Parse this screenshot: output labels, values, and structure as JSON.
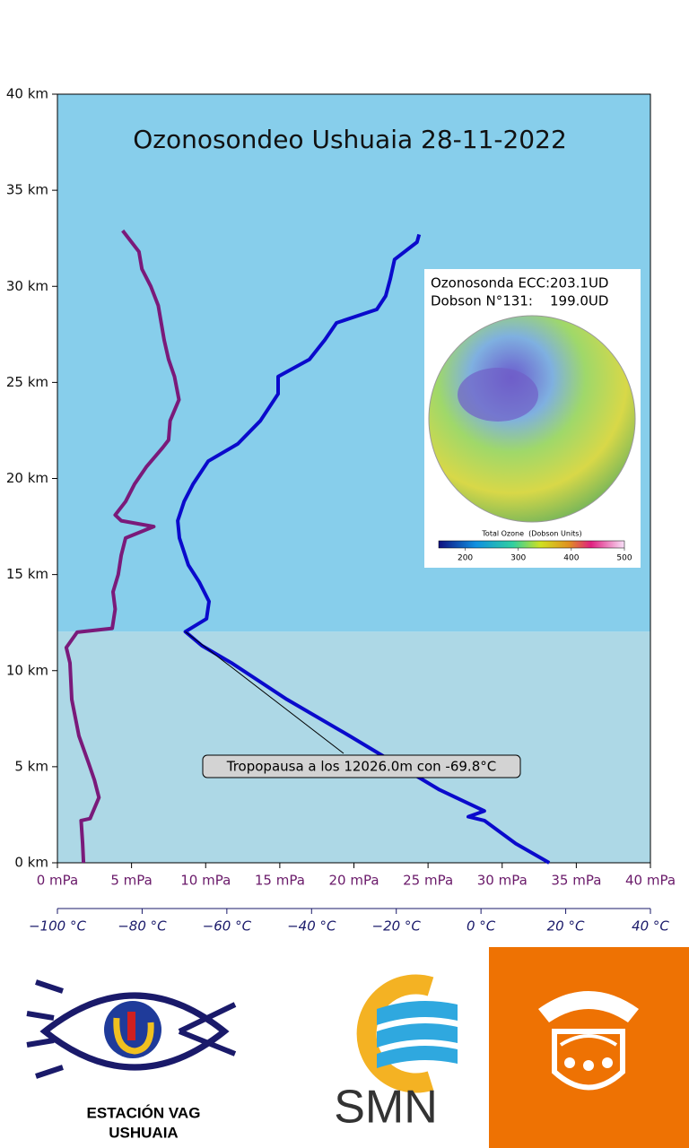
{
  "chart_data": {
    "type": "line",
    "title": "Ozonosondeo Ushuaia 28-11-2022",
    "ylim": [
      0,
      40
    ],
    "yticks": [
      {
        "value": 0,
        "label": "0 km"
      },
      {
        "value": 5,
        "label": "5 km"
      },
      {
        "value": 10,
        "label": "10 km"
      },
      {
        "value": 15,
        "label": "15 km"
      },
      {
        "value": 20,
        "label": "20 km"
      },
      {
        "value": 25,
        "label": "25 km"
      },
      {
        "value": 30,
        "label": "30 km"
      },
      {
        "value": 35,
        "label": "35 km"
      },
      {
        "value": 40,
        "label": "40 km"
      }
    ],
    "xlim": [
      0,
      40
    ],
    "xticks": [
      {
        "value": 0,
        "label": "0 mPa"
      },
      {
        "value": 5,
        "label": "5 mPa"
      },
      {
        "value": 10,
        "label": "10 mPa"
      },
      {
        "value": 15,
        "label": "15 mPa"
      },
      {
        "value": 20,
        "label": "20 mPa"
      },
      {
        "value": 25,
        "label": "25 mPa"
      },
      {
        "value": 30,
        "label": "30 mPa"
      },
      {
        "value": 35,
        "label": "35 mPa"
      },
      {
        "value": 40,
        "label": "40 mPa"
      }
    ],
    "x2lim": [
      -100,
      40
    ],
    "x2ticks": [
      {
        "value": -100,
        "label": "−100 °C"
      },
      {
        "value": -80,
        "label": "−80 °C"
      },
      {
        "value": -60,
        "label": "−60 °C"
      },
      {
        "value": -40,
        "label": "−40 °C"
      },
      {
        "value": -20,
        "label": "−20 °C"
      },
      {
        "value": 0,
        "label": "0 °C"
      },
      {
        "value": 20,
        "label": "20 °C"
      },
      {
        "value": 40,
        "label": "40 °C"
      }
    ],
    "series": [
      {
        "color": "#7a1a7a",
        "axis": "x",
        "x": [
          1.76,
          1.7,
          1.6,
          2.2,
          2.8,
          2.5,
          2.1,
          1.45,
          0.97,
          0.85,
          0.6,
          1.33,
          3.7,
          3.9,
          3.75,
          4.1,
          4.3,
          4.6,
          6.5,
          4.3,
          3.9,
          4.6,
          5.2,
          6.0,
          7.1,
          7.5,
          7.6,
          8.2,
          7.9,
          7.5,
          7.2,
          7.0,
          6.8,
          6.3,
          5.7,
          5.5,
          4.4
        ],
        "values": [
          0,
          1.0,
          2.2,
          2.3,
          3.4,
          4.3,
          5.2,
          6.6,
          8.5,
          10.4,
          11.2,
          12.0,
          12.2,
          13.2,
          14.1,
          15.0,
          16.0,
          16.9,
          17.5,
          17.8,
          18.1,
          18.8,
          19.7,
          20.6,
          21.6,
          22.0,
          23.0,
          24.1,
          25.3,
          26.2,
          27.2,
          28.1,
          29.0,
          30.0,
          30.9,
          31.8,
          32.9
        ]
      },
      {
        "color": "#0a0acc",
        "axis": "x2",
        "x": [
          16.1,
          8.2,
          0.8,
          -3.0,
          0.8,
          -9.8,
          -20.4,
          -31.0,
          -45.8,
          -58.9,
          -65.9,
          -69.8,
          -64.8,
          -64.2,
          -66.5,
          -69.1,
          -71.2,
          -71.6,
          -70.1,
          -68.0,
          -64.4,
          -57.4,
          -52.1,
          -47.9,
          -47.9,
          -40.5,
          -36.9,
          -34.1,
          -24.6,
          -22.5,
          -21.4,
          -20.4,
          -15.1,
          -14.6
        ],
        "values": [
          0,
          1.0,
          2.2,
          2.4,
          2.7,
          3.8,
          5.2,
          6.6,
          8.5,
          10.4,
          11.3,
          12.026,
          12.7,
          13.6,
          14.6,
          15.5,
          16.9,
          17.8,
          18.8,
          19.7,
          20.9,
          21.8,
          23.0,
          24.4,
          25.3,
          26.2,
          27.2,
          28.1,
          28.8,
          29.5,
          30.4,
          31.4,
          32.3,
          32.7
        ]
      }
    ],
    "annotation": {
      "text": "Tropopausa a los 12026.0m con -69.8°C",
      "x": -69.8,
      "y": 12.026
    },
    "inset": {
      "line1": "Ozonosonda ECC:203.1UD",
      "line2": "Dobson N°131:    199.0UD",
      "colorbar_title": "Total Ozone  (Dobson Units)",
      "colorbar_lim": [
        150,
        500
      ],
      "colorbar_ticks": [
        200,
        300,
        400,
        500
      ]
    }
  },
  "logos": {
    "station_line1": "ESTACIÓN VAG",
    "station_line2": "USHUAIA",
    "agency": "SMN"
  }
}
